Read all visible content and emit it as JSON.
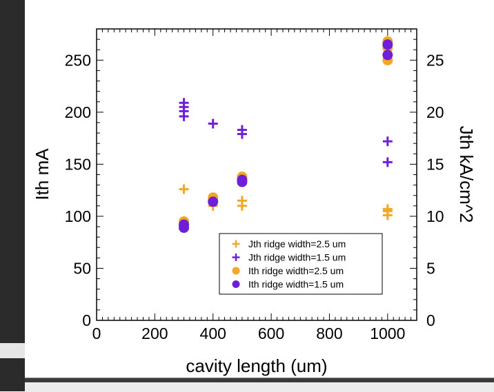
{
  "chart_data": {
    "type": "scatter",
    "xlabel": "cavity length (um)",
    "ylabel": "Ith mA",
    "y2label": "Jth kA/cm^2",
    "xlim": [
      0,
      1100
    ],
    "ylim": [
      0,
      280
    ],
    "y2lim": [
      0,
      28
    ],
    "xticks": [
      0,
      200,
      400,
      600,
      800,
      1000
    ],
    "yticks": [
      0,
      50,
      100,
      150,
      200,
      250
    ],
    "y2ticks": [
      0,
      5,
      10,
      15,
      20,
      25
    ],
    "legend_position": "lower-right",
    "series": [
      {
        "name": "Jth ridge width=2.5 um",
        "axis": "right",
        "marker": "plus",
        "color": "#f5a623",
        "x": [
          300,
          400,
          400,
          500,
          500,
          1000,
          1000,
          1000
        ],
        "y": [
          12.6,
          11.7,
          11.0,
          11.0,
          11.5,
          10.5,
          10.1,
          10.7
        ]
      },
      {
        "name": "Jth ridge width=1.5 um",
        "axis": "right",
        "marker": "plus",
        "color": "#6f1fd8",
        "x": [
          300,
          300,
          300,
          300,
          400,
          500,
          500,
          1000,
          1000
        ],
        "y": [
          19.6,
          20.1,
          20.5,
          20.9,
          18.9,
          17.9,
          18.3,
          15.2,
          17.2
        ]
      },
      {
        "name": "Ith ridge width=2.5 um",
        "axis": "left",
        "marker": "circle",
        "color": "#f5a623",
        "x": [
          300,
          300,
          400,
          500,
          1000,
          1000,
          1000
        ],
        "y": [
          95,
          92,
          118,
          138,
          250,
          262,
          268
        ]
      },
      {
        "name": "Ith ridge width=1.5 um",
        "axis": "left",
        "marker": "circle",
        "color": "#6f1fd8",
        "x": [
          300,
          300,
          400,
          500,
          500,
          1000,
          1000
        ],
        "y": [
          89,
          92,
          114,
          135,
          133,
          255,
          265
        ]
      }
    ]
  }
}
